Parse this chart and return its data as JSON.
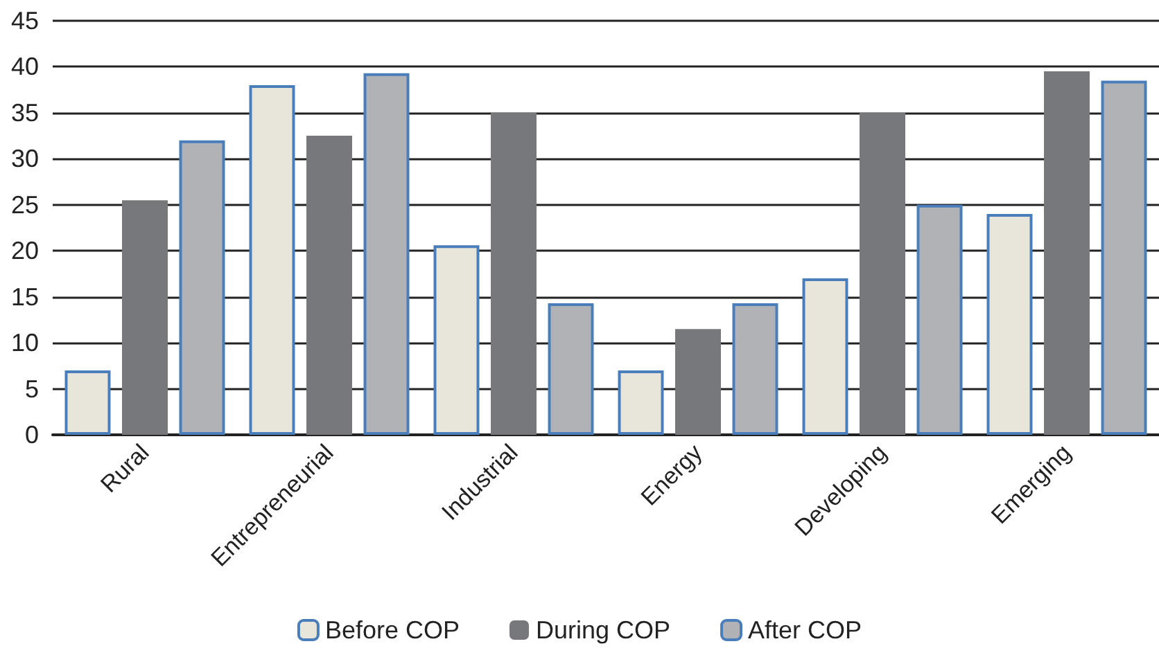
{
  "chart_data": {
    "type": "bar",
    "categories": [
      "Rural",
      "Entrepreneurial",
      "Industrial",
      "Energy",
      "Developing",
      "Emerging"
    ],
    "series": [
      {
        "name": "Before COP",
        "color": "#e8e6da",
        "values": [
          7,
          38,
          20.6,
          7,
          17,
          24
        ]
      },
      {
        "name": "During COP",
        "color": "#77787c",
        "values": [
          25.5,
          32.5,
          35,
          11.5,
          35,
          39.5
        ]
      },
      {
        "name": "After COP",
        "color": "#b1b2b5",
        "values": [
          32,
          39.3,
          14.3,
          14.3,
          25,
          38.5
        ]
      }
    ],
    "ylim": [
      0,
      45
    ],
    "yticks": [
      0,
      5,
      10,
      15,
      20,
      25,
      30,
      35,
      40,
      45
    ],
    "grid": "y",
    "legend": "bottom"
  }
}
